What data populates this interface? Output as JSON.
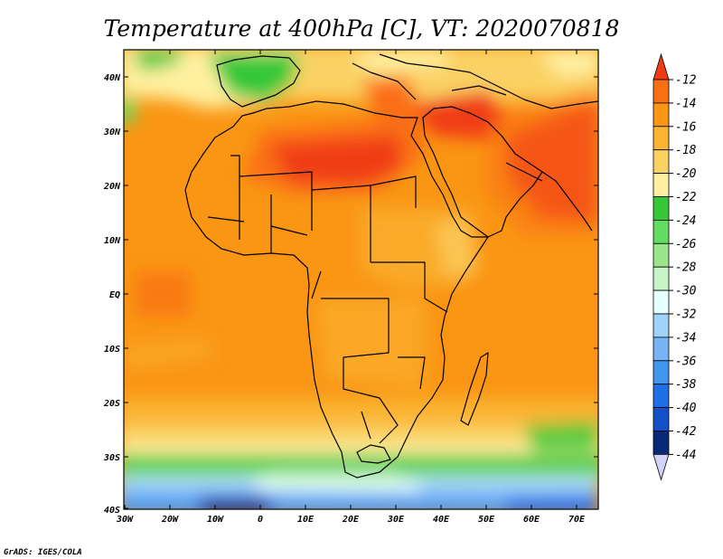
{
  "title": "Temperature at 400hPa [C], VT: 2020070818",
  "credit": "GrADS: IGES/COLA",
  "map": {
    "lat_labels": [
      "40N",
      "30N",
      "20N",
      "10N",
      "EQ",
      "10S",
      "20S",
      "30S",
      "40S"
    ],
    "lon_labels": [
      "30W",
      "20W",
      "10W",
      "0",
      "10E",
      "20E",
      "30E",
      "40E",
      "50E",
      "60E",
      "70E"
    ]
  },
  "colorbar": {
    "labels": [
      "-12",
      "-14",
      "-16",
      "-18",
      "-20",
      "-22",
      "-24",
      "-26",
      "-28",
      "-30",
      "-32",
      "-34",
      "-36",
      "-38",
      "-40",
      "-42",
      "-44"
    ],
    "colors": [
      "#f03c14",
      "#fa6e14",
      "#fa9614",
      "#fab432",
      "#fad264",
      "#fff0a0",
      "#36c837",
      "#64dc64",
      "#9be68c",
      "#c8f5c8",
      "#e6ffff",
      "#a0d2fa",
      "#78b4f5",
      "#4196f0",
      "#1e6ee6",
      "#1450c8",
      "#0a2878",
      "#d2d2fa"
    ]
  }
}
